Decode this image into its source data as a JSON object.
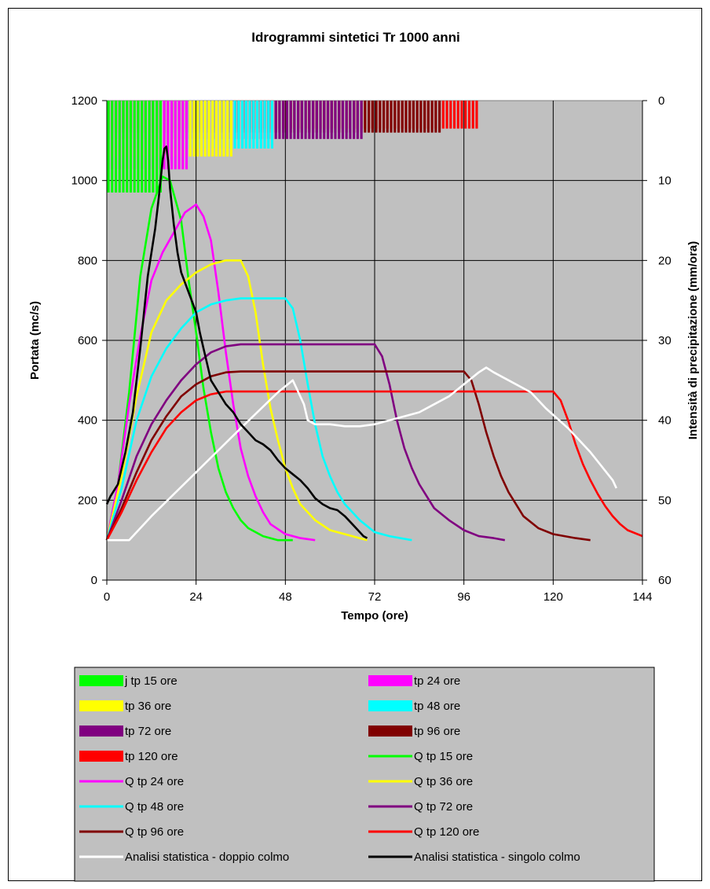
{
  "chart_data": {
    "type": "line",
    "title": "Idrogrammi sintetici Tr 1000 anni",
    "xlabel": "Tempo (ore)",
    "ylabel": "Portata (mc/s)",
    "y2label": "Intensità di precipitazione (mm/ora)",
    "xlim": [
      0,
      144
    ],
    "ylim": [
      0,
      1200
    ],
    "y2lim": [
      60,
      0
    ],
    "x_ticks": [
      "0",
      "24",
      "48",
      "72",
      "96",
      "120",
      "144"
    ],
    "y_ticks": [
      "0",
      "200",
      "400",
      "600",
      "800",
      "1000",
      "1200"
    ],
    "y2_ticks": [
      "0",
      "10",
      "20",
      "30",
      "40",
      "50",
      "60"
    ],
    "grid": true,
    "legend_position": "bottom",
    "rain_series": [
      {
        "name": "j tp 15 ore",
        "color": "#00ff00",
        "x_end": 15,
        "depth": 11.5
      },
      {
        "name": "tp 24 ore",
        "color": "#ff00ff",
        "x_end": 21.6,
        "depth": 8.6
      },
      {
        "name": "tp 36 ore",
        "color": "#ffff00",
        "x_end": 33.6,
        "depth": 7.0
      },
      {
        "name": "tp 48 ore",
        "color": "#00ffff",
        "x_end": 44.6,
        "depth": 6.0
      },
      {
        "name": "tp 72 ore",
        "color": "#800080",
        "x_end": 68.2,
        "depth": 4.8
      },
      {
        "name": "tp 96 ore",
        "color": "#800000",
        "x_end": 90,
        "depth": 4.0
      },
      {
        "name": "tp 120 ore",
        "color": "#ff0000",
        "x_end": 100,
        "depth": 3.5
      }
    ],
    "flow_series": [
      {
        "name": "Q tp 15 ore",
        "color": "#00ff00",
        "points": [
          [
            0,
            100
          ],
          [
            3,
            240
          ],
          [
            6,
            470
          ],
          [
            9,
            760
          ],
          [
            12,
            930
          ],
          [
            15,
            1010
          ],
          [
            17,
            1000
          ],
          [
            20,
            900
          ],
          [
            22,
            750
          ],
          [
            24,
            620
          ],
          [
            26,
            480
          ],
          [
            28,
            370
          ],
          [
            30,
            280
          ],
          [
            32,
            220
          ],
          [
            34,
            180
          ],
          [
            36,
            150
          ],
          [
            38,
            130
          ],
          [
            42,
            110
          ],
          [
            46,
            100
          ],
          [
            50,
            100
          ]
        ]
      },
      {
        "name": "Q tp 24 ore",
        "color": "#ff00ff",
        "points": [
          [
            0,
            100
          ],
          [
            3,
            240
          ],
          [
            6,
            440
          ],
          [
            9,
            610
          ],
          [
            12,
            750
          ],
          [
            15,
            820
          ],
          [
            18,
            870
          ],
          [
            21,
            920
          ],
          [
            24,
            940
          ],
          [
            26,
            910
          ],
          [
            28,
            850
          ],
          [
            30,
            720
          ],
          [
            32,
            570
          ],
          [
            34,
            440
          ],
          [
            36,
            330
          ],
          [
            38,
            260
          ],
          [
            40,
            210
          ],
          [
            42,
            170
          ],
          [
            44,
            140
          ],
          [
            48,
            115
          ],
          [
            52,
            105
          ],
          [
            56,
            100
          ]
        ]
      },
      {
        "name": "Q tp 36 ore",
        "color": "#ffff00",
        "points": [
          [
            0,
            100
          ],
          [
            4,
            260
          ],
          [
            8,
            460
          ],
          [
            12,
            620
          ],
          [
            16,
            700
          ],
          [
            20,
            740
          ],
          [
            24,
            770
          ],
          [
            28,
            790
          ],
          [
            32,
            800
          ],
          [
            36,
            800
          ],
          [
            38,
            760
          ],
          [
            40,
            670
          ],
          [
            42,
            540
          ],
          [
            44,
            430
          ],
          [
            46,
            350
          ],
          [
            48,
            280
          ],
          [
            50,
            230
          ],
          [
            52,
            190
          ],
          [
            56,
            150
          ],
          [
            60,
            125
          ],
          [
            66,
            110
          ],
          [
            70,
            100
          ]
        ]
      },
      {
        "name": "Q tp 48 ore",
        "color": "#00ffff",
        "points": [
          [
            0,
            100
          ],
          [
            4,
            230
          ],
          [
            8,
            400
          ],
          [
            12,
            510
          ],
          [
            16,
            580
          ],
          [
            20,
            630
          ],
          [
            24,
            670
          ],
          [
            28,
            690
          ],
          [
            32,
            700
          ],
          [
            36,
            705
          ],
          [
            40,
            705
          ],
          [
            48,
            705
          ],
          [
            50,
            680
          ],
          [
            52,
            600
          ],
          [
            54,
            490
          ],
          [
            56,
            390
          ],
          [
            58,
            310
          ],
          [
            60,
            260
          ],
          [
            62,
            220
          ],
          [
            64,
            190
          ],
          [
            68,
            150
          ],
          [
            72,
            120
          ],
          [
            76,
            110
          ],
          [
            82,
            100
          ]
        ]
      },
      {
        "name": "Q tp 72 ore",
        "color": "#800080",
        "points": [
          [
            0,
            100
          ],
          [
            4,
            200
          ],
          [
            8,
            310
          ],
          [
            12,
            390
          ],
          [
            16,
            450
          ],
          [
            20,
            500
          ],
          [
            24,
            540
          ],
          [
            28,
            570
          ],
          [
            32,
            585
          ],
          [
            36,
            590
          ],
          [
            48,
            590
          ],
          [
            60,
            590
          ],
          [
            72,
            590
          ],
          [
            74,
            560
          ],
          [
            76,
            490
          ],
          [
            78,
            400
          ],
          [
            80,
            330
          ],
          [
            82,
            280
          ],
          [
            84,
            240
          ],
          [
            86,
            210
          ],
          [
            88,
            180
          ],
          [
            92,
            150
          ],
          [
            96,
            125
          ],
          [
            100,
            110
          ],
          [
            104,
            105
          ],
          [
            107,
            100
          ]
        ]
      },
      {
        "name": "Q tp 96 ore",
        "color": "#800000",
        "points": [
          [
            0,
            100
          ],
          [
            4,
            180
          ],
          [
            8,
            270
          ],
          [
            12,
            350
          ],
          [
            16,
            410
          ],
          [
            20,
            460
          ],
          [
            24,
            490
          ],
          [
            28,
            510
          ],
          [
            32,
            520
          ],
          [
            36,
            522
          ],
          [
            60,
            522
          ],
          [
            84,
            522
          ],
          [
            96,
            522
          ],
          [
            98,
            500
          ],
          [
            100,
            440
          ],
          [
            102,
            370
          ],
          [
            104,
            310
          ],
          [
            106,
            260
          ],
          [
            108,
            220
          ],
          [
            110,
            190
          ],
          [
            112,
            160
          ],
          [
            116,
            130
          ],
          [
            120,
            115
          ],
          [
            126,
            105
          ],
          [
            130,
            100
          ]
        ]
      },
      {
        "name": "Q tp 120 ore",
        "color": "#ff0000",
        "points": [
          [
            0,
            100
          ],
          [
            4,
            170
          ],
          [
            8,
            250
          ],
          [
            12,
            320
          ],
          [
            16,
            380
          ],
          [
            20,
            420
          ],
          [
            24,
            450
          ],
          [
            28,
            465
          ],
          [
            32,
            472
          ],
          [
            40,
            472
          ],
          [
            60,
            472
          ],
          [
            80,
            472
          ],
          [
            100,
            472
          ],
          [
            120,
            472
          ],
          [
            122,
            450
          ],
          [
            124,
            400
          ],
          [
            126,
            340
          ],
          [
            128,
            290
          ],
          [
            130,
            250
          ],
          [
            132,
            215
          ],
          [
            134,
            185
          ],
          [
            136,
            160
          ],
          [
            138,
            140
          ],
          [
            140,
            125
          ],
          [
            144,
            110
          ]
        ]
      },
      {
        "name": "Analisi statistica - doppio colmo",
        "color": "#ffffff",
        "points": [
          [
            0,
            100
          ],
          [
            6,
            100
          ],
          [
            12,
            160
          ],
          [
            24,
            270
          ],
          [
            36,
            380
          ],
          [
            46,
            470
          ],
          [
            50,
            500
          ],
          [
            53,
            440
          ],
          [
            54,
            400
          ],
          [
            56,
            390
          ],
          [
            60,
            390
          ],
          [
            64,
            385
          ],
          [
            68,
            385
          ],
          [
            72,
            390
          ],
          [
            76,
            400
          ],
          [
            80,
            410
          ],
          [
            84,
            420
          ],
          [
            88,
            440
          ],
          [
            92,
            460
          ],
          [
            96,
            490
          ],
          [
            100,
            520
          ],
          [
            102,
            532
          ],
          [
            104,
            520
          ],
          [
            108,
            500
          ],
          [
            112,
            480
          ],
          [
            114,
            470
          ],
          [
            118,
            430
          ],
          [
            124,
            380
          ],
          [
            130,
            320
          ],
          [
            136,
            250
          ],
          [
            137,
            230
          ]
        ]
      },
      {
        "name": "Analisi statistica - singolo colmo",
        "color": "#000000",
        "points": [
          [
            0,
            190
          ],
          [
            1,
            210
          ],
          [
            3,
            240
          ],
          [
            5,
            320
          ],
          [
            7,
            420
          ],
          [
            9,
            580
          ],
          [
            11,
            760
          ],
          [
            13,
            880
          ],
          [
            14,
            960
          ],
          [
            15,
            1050
          ],
          [
            15.5,
            1080
          ],
          [
            16,
            1085
          ],
          [
            16.5,
            1050
          ],
          [
            17,
            980
          ],
          [
            18,
            890
          ],
          [
            19,
            820
          ],
          [
            20,
            770
          ],
          [
            22,
            720
          ],
          [
            24,
            670
          ],
          [
            25,
            620
          ],
          [
            26,
            580
          ],
          [
            27,
            540
          ],
          [
            28,
            500
          ],
          [
            30,
            470
          ],
          [
            32,
            440
          ],
          [
            34,
            420
          ],
          [
            36,
            390
          ],
          [
            38,
            370
          ],
          [
            40,
            350
          ],
          [
            42,
            340
          ],
          [
            44,
            325
          ],
          [
            46,
            300
          ],
          [
            48,
            280
          ],
          [
            50,
            265
          ],
          [
            52,
            250
          ],
          [
            54,
            230
          ],
          [
            56,
            205
          ],
          [
            58,
            190
          ],
          [
            60,
            180
          ],
          [
            62,
            175
          ],
          [
            64,
            160
          ],
          [
            66,
            140
          ],
          [
            68,
            120
          ],
          [
            69,
            110
          ],
          [
            70,
            105
          ]
        ]
      }
    ]
  },
  "legend": {
    "items": [
      {
        "label": "j tp 15 ore",
        "color": "#00ff00",
        "kind": "bar"
      },
      {
        "label": "tp 24 ore",
        "color": "#ff00ff",
        "kind": "bar"
      },
      {
        "label": "tp 36 ore",
        "color": "#ffff00",
        "kind": "bar"
      },
      {
        "label": "tp 48 ore",
        "color": "#00ffff",
        "kind": "bar"
      },
      {
        "label": "tp 72 ore",
        "color": "#800080",
        "kind": "bar"
      },
      {
        "label": "tp 96 ore",
        "color": "#800000",
        "kind": "bar"
      },
      {
        "label": "tp 120 ore",
        "color": "#ff0000",
        "kind": "bar"
      },
      {
        "label": "Q tp 15 ore",
        "color": "#00ff00",
        "kind": "line"
      },
      {
        "label": "Q tp 24 ore",
        "color": "#ff00ff",
        "kind": "line"
      },
      {
        "label": "Q tp 36 ore",
        "color": "#ffff00",
        "kind": "line"
      },
      {
        "label": "Q tp 48 ore",
        "color": "#00ffff",
        "kind": "line"
      },
      {
        "label": "Q tp 72 ore",
        "color": "#800080",
        "kind": "line"
      },
      {
        "label": "Q tp 96 ore",
        "color": "#800000",
        "kind": "line"
      },
      {
        "label": "Q tp 120 ore",
        "color": "#ff0000",
        "kind": "line"
      },
      {
        "label": "Analisi statistica - doppio colmo",
        "color": "#ffffff",
        "kind": "line"
      },
      {
        "label": "Analisi statistica - singolo colmo",
        "color": "#000000",
        "kind": "line"
      }
    ]
  },
  "colors": {
    "plot_background": "#c0c0c0",
    "legend_background": "#c0c0c0"
  }
}
